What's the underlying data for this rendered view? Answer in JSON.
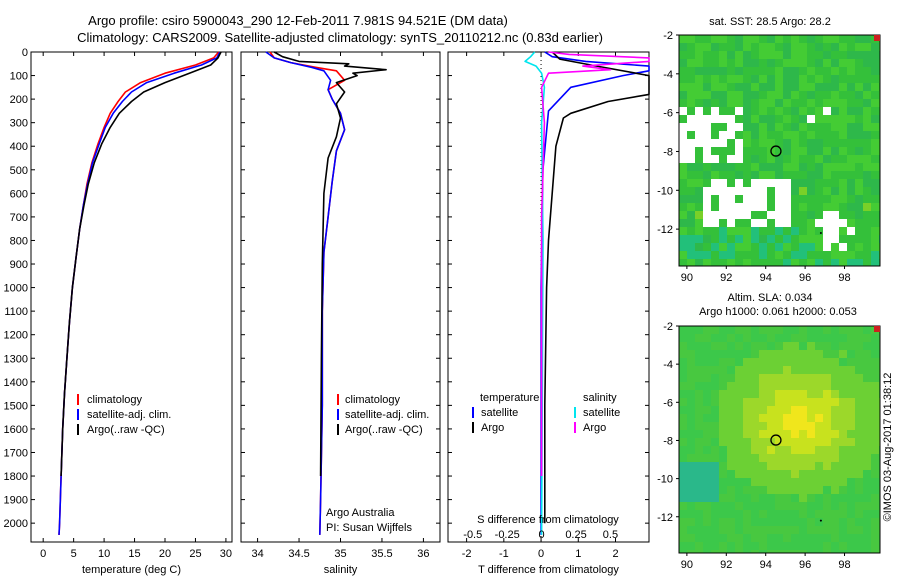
{
  "title": {
    "line1": "Argo profile: csiro 5900043_290 12-Feb-2011 7.981S 94.521E (DM data)",
    "line2": "Climatology: CARS2009. Satellite-adjusted climatology: synTS_20110212.nc (0.83d earlier)"
  },
  "colors": {
    "climatology": "#ff0000",
    "satellite": "#0000ff",
    "argo": "#000000",
    "salinity_satellite": "#00e5ee",
    "salinity_argo": "#ff00ff"
  },
  "footer": {
    "credit": "©IMOS 03-Aug-2017 01:38:12",
    "argo_line1": "Argo Australia",
    "argo_line2": "PI: Susan Wijffels"
  },
  "chart_data": [
    {
      "id": "temperature",
      "type": "line",
      "xlabel": "temperature (deg C)",
      "ylabel": "",
      "xlim": [
        -2,
        31
      ],
      "ylim": [
        2080,
        0
      ],
      "xticks": [
        0,
        5,
        10,
        15,
        20,
        25,
        30
      ],
      "xtick_labels": [
        "0",
        "5",
        "10",
        "15",
        "20",
        "25",
        "30"
      ],
      "yticks": [
        0,
        100,
        200,
        300,
        400,
        500,
        600,
        700,
        800,
        900,
        1000,
        1100,
        1200,
        1300,
        1400,
        1500,
        1600,
        1700,
        1800,
        1900,
        2000
      ],
      "ytick_labels": [
        "0",
        "100",
        "200",
        "300",
        "400",
        "500",
        "600",
        "700",
        "800",
        "900",
        "1000",
        "1100",
        "1200",
        "1300",
        "1400",
        "1500",
        "1600",
        "1700",
        "1800",
        "1900",
        "2000"
      ],
      "legend": [
        {
          "label": "climatology",
          "color": "#ff0000"
        },
        {
          "label": "satellite-adj. clim.",
          "color": "#0000ff"
        },
        {
          "label": "Argo(..raw -QC)",
          "color": "#000000"
        }
      ],
      "series": [
        {
          "name": "climatology",
          "color": "#ff0000",
          "x": [
            28.8,
            28.0,
            25.0,
            20.0,
            16.0,
            13.5,
            12.3,
            11.0,
            10.0,
            9.0,
            8.0,
            7.2,
            6.6,
            6.0,
            5.4,
            4.8,
            4.3,
            3.9,
            3.5,
            3.2,
            2.95,
            2.7,
            2.6
          ],
          "y": [
            0,
            25,
            55,
            90,
            130,
            170,
            210,
            260,
            320,
            390,
            470,
            560,
            650,
            750,
            870,
            1000,
            1150,
            1300,
            1450,
            1600,
            1800,
            2000,
            2050
          ]
        },
        {
          "name": "satellite-adj. clim.",
          "color": "#0000ff",
          "x": [
            29.0,
            28.5,
            26.0,
            21.5,
            17.0,
            14.5,
            13.0,
            11.5,
            10.2,
            9.2,
            8.1,
            7.3,
            6.6,
            6.0,
            5.4,
            4.8,
            4.3,
            3.9,
            3.5,
            3.2,
            2.95,
            2.7,
            2.6
          ],
          "y": [
            0,
            25,
            55,
            90,
            130,
            170,
            210,
            260,
            320,
            390,
            470,
            560,
            650,
            750,
            870,
            1000,
            1150,
            1300,
            1450,
            1600,
            1800,
            2000,
            2050
          ]
        },
        {
          "name": "Argo(..raw -QC)",
          "color": "#000000",
          "x": [
            29.2,
            28.7,
            27.5,
            24.0,
            20.0,
            16.5,
            14.5,
            12.5,
            11.0,
            9.6,
            8.4,
            7.4,
            6.7,
            6.0,
            5.4,
            4.8,
            4.3,
            3.9,
            3.5,
            3.2,
            2.95
          ],
          "y": [
            0,
            25,
            55,
            90,
            130,
            170,
            210,
            260,
            320,
            390,
            470,
            560,
            650,
            750,
            870,
            1000,
            1150,
            1300,
            1450,
            1600,
            1800
          ]
        }
      ]
    },
    {
      "id": "salinity",
      "type": "line",
      "xlabel": "salinity",
      "xlim": [
        33.8,
        36.2
      ],
      "ylim": [
        2080,
        0
      ],
      "xticks": [
        34,
        34.5,
        35,
        35.5,
        36
      ],
      "xtick_labels": [
        "34",
        "34.5",
        "35",
        "35.5",
        "36"
      ],
      "legend": [
        {
          "label": "climatology",
          "color": "#ff0000"
        },
        {
          "label": "satellite-adj. clim.",
          "color": "#0000ff"
        },
        {
          "label": "Argo(..raw -QC)",
          "color": "#000000"
        }
      ],
      "series": [
        {
          "name": "climatology",
          "color": "#ff0000",
          "x": [
            34.15,
            34.2,
            34.4,
            34.7,
            34.95,
            35.05,
            34.85,
            34.9,
            35.0,
            35.05,
            34.95,
            34.9,
            34.85,
            34.8,
            34.78,
            34.78,
            34.76,
            34.75
          ],
          "y": [
            0,
            25,
            45,
            65,
            80,
            120,
            160,
            200,
            260,
            330,
            420,
            550,
            700,
            850,
            1100,
            1500,
            1900,
            2050
          ]
        },
        {
          "name": "satellite-adj. clim.",
          "color": "#0000ff",
          "x": [
            34.1,
            34.2,
            34.4,
            34.65,
            34.8,
            34.88,
            34.85,
            34.9,
            35.0,
            35.05,
            34.95,
            34.9,
            34.85,
            34.8,
            34.78,
            34.78,
            34.76,
            34.75
          ],
          "y": [
            0,
            25,
            45,
            65,
            80,
            120,
            160,
            200,
            260,
            330,
            420,
            550,
            700,
            850,
            1100,
            1500,
            1900,
            2050
          ]
        },
        {
          "name": "Argo(..raw -QC)",
          "color": "#000000",
          "x": [
            34.2,
            34.3,
            34.5,
            35.1,
            35.05,
            35.55,
            35.15,
            35.2,
            34.95,
            35.05,
            34.95,
            35.0,
            34.95,
            34.85,
            34.8,
            34.78,
            34.77,
            34.76
          ],
          "y": [
            0,
            20,
            40,
            50,
            60,
            75,
            90,
            100,
            130,
            170,
            220,
            280,
            360,
            450,
            600,
            900,
            1300,
            1800
          ]
        }
      ]
    },
    {
      "id": "difference",
      "type": "line",
      "xlabel": "T difference from climatology",
      "xlabel_top": "S difference from climatology",
      "xlim": [
        -2.5,
        2.9
      ],
      "ylim": [
        2080,
        0
      ],
      "xticks": [
        -2,
        -1,
        0,
        1,
        2
      ],
      "xtick_labels": [
        "-2",
        "-1",
        "0",
        "1",
        "2"
      ],
      "sticks": [
        -0.5,
        -0.25,
        0,
        0.25,
        0.5
      ],
      "stick_labels": [
        "-0.5",
        "-0.25",
        "0",
        "0.25",
        "0.5"
      ],
      "slim": [
        -0.68,
        0.78
      ],
      "legend_headers": [
        "temperature",
        "salinity"
      ],
      "legend": [
        {
          "label": "satellite",
          "color": "#0000ff"
        },
        {
          "label": "Argo",
          "color": "#000000"
        },
        {
          "label": "satellite",
          "color": "#00e5ee"
        },
        {
          "label": "Argo",
          "color": "#ff00ff"
        }
      ],
      "series": [
        {
          "name": "temperature satellite",
          "color": "#0000ff",
          "kind": "T",
          "x": [
            0.1,
            0.3,
            1.2,
            2.9,
            2.9,
            2.2,
            0.8,
            0.2,
            0.05,
            0.0,
            0.0
          ],
          "y": [
            0,
            20,
            40,
            60,
            80,
            100,
            150,
            250,
            500,
            1000,
            2050
          ]
        },
        {
          "name": "temperature Argo",
          "color": "#000000",
          "kind": "T",
          "x": [
            0.3,
            0.5,
            1.5,
            2.9,
            2.9,
            1.8,
            0.8,
            0.6,
            0.4,
            0.3,
            0.2,
            0.15,
            0.1,
            0.1
          ],
          "y": [
            0,
            30,
            60,
            100,
            180,
            210,
            260,
            280,
            400,
            600,
            800,
            1000,
            1500,
            2000
          ]
        },
        {
          "name": "salinity satellite",
          "color": "#00e5ee",
          "kind": "S",
          "x": [
            -0.05,
            -0.08,
            -0.12,
            -0.04,
            0.0,
            0.02,
            0.0,
            0.01,
            0.0
          ],
          "y": [
            0,
            20,
            40,
            60,
            90,
            150,
            300,
            800,
            2050
          ]
        },
        {
          "name": "salinity Argo",
          "color": "#ff00ff",
          "kind": "S",
          "x": [
            0.05,
            0.2,
            0.78,
            0.78,
            0.3,
            0.5,
            0.05,
            0.0,
            0.02,
            0.0,
            0.0
          ],
          "y": [
            0,
            10,
            25,
            40,
            60,
            75,
            90,
            150,
            300,
            700,
            1800
          ]
        }
      ]
    },
    {
      "id": "sst-map",
      "type": "heatmap",
      "title": "sat. SST: 28.5  Argo: 28.2",
      "xlim": [
        89.6,
        99.8
      ],
      "ylim": [
        -13.9,
        -2
      ],
      "xticks": [
        90,
        92,
        94,
        96,
        98
      ],
      "xtick_labels": [
        "90",
        "92",
        "94",
        "96",
        "98"
      ],
      "yticks": [
        -2,
        -4,
        -6,
        -8,
        -10,
        -12
      ],
      "ytick_labels": [
        "-2",
        "-4",
        "-6",
        "-8",
        "-10",
        "-12"
      ],
      "marker": {
        "lon": 94.52,
        "lat": -7.98
      }
    },
    {
      "id": "sla-map",
      "type": "heatmap",
      "title": "Altim. SLA: 0.034",
      "subtitle": "Argo h1000: 0.061 h2000: 0.053",
      "xlim": [
        89.6,
        99.8
      ],
      "ylim": [
        -13.9,
        -2
      ],
      "xticks": [
        90,
        92,
        94,
        96,
        98
      ],
      "xtick_labels": [
        "90",
        "92",
        "94",
        "96",
        "98"
      ],
      "yticks": [
        -2,
        -4,
        -6,
        -8,
        -10,
        -12
      ],
      "ytick_labels": [
        "-2",
        "-4",
        "-6",
        "-8",
        "-10",
        "-12"
      ],
      "marker": {
        "lon": 94.52,
        "lat": -7.98
      }
    }
  ]
}
